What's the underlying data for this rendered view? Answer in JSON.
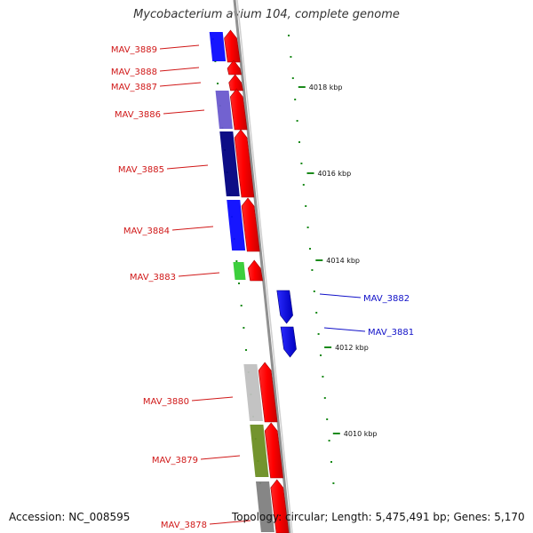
{
  "title": "Mycobacterium avium 104, complete genome",
  "footer": {
    "accession": "Accession: NC_008595",
    "topology": "Topology: circular; Length: 5,475,491 bp; Genes: 5,170"
  },
  "colors": {
    "forward_label": "#d01818",
    "reverse_label": "#1010c8",
    "tick": "#1a8a1a",
    "backbone": "#909090"
  },
  "scale_ticks": [
    {
      "label": "4018 kbp"
    },
    {
      "label": "4016 kbp"
    },
    {
      "label": "4014 kbp"
    },
    {
      "label": "4012 kbp"
    },
    {
      "label": "4010 kbp"
    }
  ],
  "genes": [
    {
      "label": "MAV_3889",
      "strand": "forward",
      "icon": "red-forward-arrow",
      "cog_color": "#0a0aff"
    },
    {
      "label": "MAV_3888",
      "strand": "forward",
      "icon": "red-forward-arrow",
      "cog_color": ""
    },
    {
      "label": "MAV_3887",
      "strand": "forward",
      "icon": "red-forward-arrow",
      "cog_color": ""
    },
    {
      "label": "MAV_3886",
      "strand": "forward",
      "icon": "red-forward-arrow",
      "cog_color": "#6a5acd"
    },
    {
      "label": "MAV_3885",
      "strand": "forward",
      "icon": "red-forward-arrow",
      "cog_color": "#000080"
    },
    {
      "label": "MAV_3884",
      "strand": "forward",
      "icon": "red-forward-arrow",
      "cog_color": "#0a0aff"
    },
    {
      "label": "MAV_3883",
      "strand": "forward",
      "icon": "red-forward-arrow",
      "cog_color": "#33cc33"
    },
    {
      "label": "MAV_3882",
      "strand": "reverse",
      "icon": "blue-reverse-arrow",
      "cog_color": ""
    },
    {
      "label": "MAV_3881",
      "strand": "reverse",
      "icon": "blue-reverse-arrow",
      "cog_color": ""
    },
    {
      "label": "MAV_3880",
      "strand": "forward",
      "icon": "red-forward-arrow",
      "cog_color": "#c0c0c0"
    },
    {
      "label": "MAV_3879",
      "strand": "forward",
      "icon": "red-forward-arrow",
      "cog_color": "#6b8e23"
    },
    {
      "label": "MAV_3878",
      "strand": "forward",
      "icon": "red-forward-arrow",
      "cog_color": "#808080"
    }
  ]
}
